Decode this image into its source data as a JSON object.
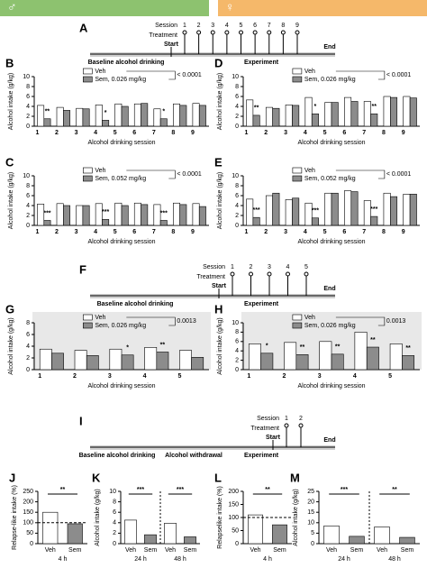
{
  "header": {
    "male": "♂",
    "female": "♀"
  },
  "timelines": [
    {
      "label": "A",
      "session_label": "Session",
      "treatment_label": "Treatment",
      "sessions": [
        "1",
        "2",
        "3",
        "4",
        "5",
        "6",
        "7",
        "8",
        "9"
      ],
      "segments": [
        "Baseline alcohol drinking",
        "Experiment"
      ],
      "start": "Start",
      "end": "End"
    },
    {
      "label": "F",
      "session_label": "Session",
      "treatment_label": "Treatment",
      "sessions": [
        "1",
        "2",
        "3",
        "4",
        "5"
      ],
      "segments": [
        "Baseline alcohol drinking",
        "Experiment"
      ],
      "start": "Start",
      "end": "End"
    },
    {
      "label": "I",
      "session_label": "Session",
      "treatment_label": "Treatment",
      "sessions": [
        "1",
        "2"
      ],
      "segments": [
        "Baseline alcohol drinking",
        "Alcohol withdrawal",
        "Experiment"
      ],
      "start": "Start",
      "end": "End"
    }
  ],
  "chart_data": [
    {
      "type": "bar",
      "label": "B",
      "ylabel": "Alcohol intake (g/kg)",
      "xlabel": "Alcohol drinking session",
      "categories": [
        "1",
        "2",
        "3",
        "4",
        "5",
        "6",
        "7",
        "8",
        "9"
      ],
      "series": [
        {
          "name": "Veh",
          "color": "#ffffff",
          "values": [
            4.2,
            3.8,
            3.6,
            4.3,
            4.5,
            4.5,
            3.5,
            4.5,
            4.6
          ]
        },
        {
          "name": "Sem, 0.026 mg/kg",
          "color": "#8c8c8c",
          "values": [
            1.5,
            3.2,
            3.5,
            1.2,
            4.0,
            4.6,
            1.5,
            4.2,
            4.2
          ]
        }
      ],
      "ylim": [
        0,
        10
      ],
      "yticks": [
        0,
        2,
        4,
        6,
        8,
        10
      ],
      "pvalue": "< 0.0001",
      "annotations": [
        {
          "x": "1",
          "text": "**"
        },
        {
          "x": "4",
          "text": "*"
        },
        {
          "x": "7",
          "text": "*"
        }
      ]
    },
    {
      "type": "bar",
      "label": "D",
      "ylabel": "Alcohol intake (g/kg)",
      "xlabel": "Alcohol drinking session",
      "categories": [
        "1",
        "2",
        "3",
        "4",
        "5",
        "6",
        "7",
        "8",
        "9"
      ],
      "series": [
        {
          "name": "Veh",
          "color": "#ffffff",
          "values": [
            5.3,
            3.8,
            4.3,
            5.8,
            4.8,
            5.8,
            5.0,
            6.0,
            6.0
          ]
        },
        {
          "name": "Sem, 0.026 mg/kg",
          "color": "#8c8c8c",
          "values": [
            2.2,
            3.6,
            4.2,
            2.5,
            4.8,
            5.0,
            2.5,
            5.8,
            5.7
          ]
        }
      ],
      "ylim": [
        0,
        10
      ],
      "yticks": [
        0,
        2,
        4,
        6,
        8,
        10
      ],
      "pvalue": "< 0.0001",
      "annotations": [
        {
          "x": "1",
          "text": "**"
        },
        {
          "x": "4",
          "text": "*"
        },
        {
          "x": "7",
          "text": "**"
        }
      ]
    },
    {
      "type": "bar",
      "label": "C",
      "ylabel": "Alcohol intake (g/kg)",
      "xlabel": "Alcohol drinking session",
      "categories": [
        "1",
        "2",
        "3",
        "4",
        "5",
        "6",
        "7",
        "8",
        "9"
      ],
      "series": [
        {
          "name": "Veh",
          "color": "#ffffff",
          "values": [
            4.3,
            4.4,
            4.0,
            4.4,
            4.5,
            4.5,
            4.2,
            4.5,
            4.4
          ]
        },
        {
          "name": "Sem, 0.052 mg/kg",
          "color": "#8c8c8c",
          "values": [
            1.0,
            4.0,
            4.0,
            1.2,
            4.0,
            4.2,
            1.0,
            4.2,
            3.8
          ]
        }
      ],
      "ylim": [
        0,
        10
      ],
      "yticks": [
        0,
        2,
        4,
        6,
        8,
        10
      ],
      "pvalue": "< 0.0001",
      "annotations": [
        {
          "x": "1",
          "text": "***"
        },
        {
          "x": "4",
          "text": "***"
        },
        {
          "x": "7",
          "text": "***"
        }
      ]
    },
    {
      "type": "bar",
      "label": "E",
      "ylabel": "Alcohol intake (g/kg)",
      "xlabel": "Alcohol drinking session",
      "categories": [
        "1",
        "2",
        "3",
        "4",
        "5",
        "6",
        "7",
        "8",
        "9"
      ],
      "series": [
        {
          "name": "Veh",
          "color": "#ffffff",
          "values": [
            5.3,
            6.0,
            5.2,
            4.5,
            6.5,
            7.0,
            5.0,
            6.5,
            6.3
          ]
        },
        {
          "name": "Sem, 0.052 mg/kg",
          "color": "#8c8c8c",
          "values": [
            1.6,
            6.5,
            5.5,
            1.5,
            6.5,
            6.8,
            1.8,
            5.8,
            6.3
          ]
        }
      ],
      "ylim": [
        0,
        10
      ],
      "yticks": [
        0,
        2,
        4,
        6,
        8,
        10
      ],
      "pvalue": "< 0.0001",
      "annotations": [
        {
          "x": "1",
          "text": "***"
        },
        {
          "x": "4",
          "text": "***"
        },
        {
          "x": "7",
          "text": "***"
        }
      ]
    },
    {
      "type": "bar",
      "label": "G",
      "ylabel": "Alcohol intake (g/kg)",
      "xlabel": "Alcohol drinking session",
      "categories": [
        "1",
        "2",
        "3",
        "4",
        "5"
      ],
      "series": [
        {
          "name": "Veh",
          "color": "#ffffff",
          "values": [
            3.5,
            3.3,
            3.5,
            3.8,
            3.3
          ]
        },
        {
          "name": "Sem, 0.026 mg/kg",
          "color": "#8c8c8c",
          "values": [
            2.8,
            2.4,
            2.5,
            3.0,
            2.1
          ]
        }
      ],
      "ylim": [
        0,
        8
      ],
      "yticks": [
        0,
        2,
        4,
        6,
        8
      ],
      "pvalue": "0.0013",
      "annotations": [
        {
          "x": "3",
          "text": "*"
        },
        {
          "x": "4",
          "text": "**"
        }
      ]
    },
    {
      "type": "bar",
      "label": "H",
      "ylabel": "Alcohol intake (g/kg)",
      "xlabel": "Alcohol drinking session",
      "categories": [
        "1",
        "2",
        "3",
        "4",
        "5"
      ],
      "series": [
        {
          "name": "Veh",
          "color": "#ffffff",
          "values": [
            5.5,
            5.8,
            6.0,
            8.0,
            5.5
          ]
        },
        {
          "name": "Sem, 0.026 mg/kg",
          "color": "#8c8c8c",
          "values": [
            3.5,
            3.2,
            3.3,
            4.8,
            3.0
          ]
        }
      ],
      "ylim": [
        0,
        10
      ],
      "yticks": [
        0,
        2,
        4,
        6,
        8,
        10
      ],
      "pvalue": "0.0013",
      "annotations": [
        {
          "x": "1",
          "text": "*"
        },
        {
          "x": "2",
          "text": "**"
        },
        {
          "x": "3",
          "text": "**"
        },
        {
          "x": "4",
          "text": "**"
        },
        {
          "x": "5",
          "text": "**"
        }
      ]
    },
    {
      "type": "bar",
      "label": "J",
      "ylabel": "Relapse-like intake (%)",
      "categories": [
        "Veh",
        "Sem"
      ],
      "groups": [
        "4 h"
      ],
      "values": [
        150,
        95
      ],
      "ylim": [
        0,
        250
      ],
      "yticks": [
        0,
        50,
        100,
        150,
        200,
        250
      ],
      "refline": 100,
      "annotations": [
        {
          "x": "4 h",
          "text": "**"
        }
      ]
    },
    {
      "type": "bar",
      "label": "K",
      "ylabel": "Alcohol intake (g/kg)",
      "categories": [
        "Veh",
        "Sem",
        "Veh",
        "Sem"
      ],
      "groups": [
        "24 h",
        "48 h"
      ],
      "values": [
        4.5,
        1.7,
        3.9,
        1.3
      ],
      "ylim": [
        0,
        10
      ],
      "yticks": [
        0,
        2,
        4,
        6,
        8,
        10
      ],
      "annotations": [
        {
          "x": "24 h",
          "text": "***"
        },
        {
          "x": "48 h",
          "text": "***"
        }
      ]
    },
    {
      "type": "bar",
      "label": "L",
      "ylabel": "Relapselike intake (%)",
      "categories": [
        "Veh",
        "Sem"
      ],
      "groups": [
        "4 h"
      ],
      "values": [
        110,
        72
      ],
      "ylim": [
        0,
        200
      ],
      "yticks": [
        0,
        50,
        100,
        150,
        200
      ],
      "refline": 100,
      "annotations": [
        {
          "x": "4 h",
          "text": "**"
        }
      ]
    },
    {
      "type": "bar",
      "label": "M",
      "ylabel": "Alcohol intake (g/kg)",
      "categories": [
        "Veh",
        "Sem",
        "Veh",
        "Sem"
      ],
      "groups": [
        "24 h",
        "48 h"
      ],
      "values": [
        8.5,
        3.5,
        8.0,
        3.0
      ],
      "ylim": [
        0,
        25
      ],
      "yticks": [
        0,
        5,
        10,
        15,
        20,
        25
      ],
      "annotations": [
        {
          "x": "24 h",
          "text": "***"
        },
        {
          "x": "48 h",
          "text": "**"
        }
      ]
    }
  ]
}
